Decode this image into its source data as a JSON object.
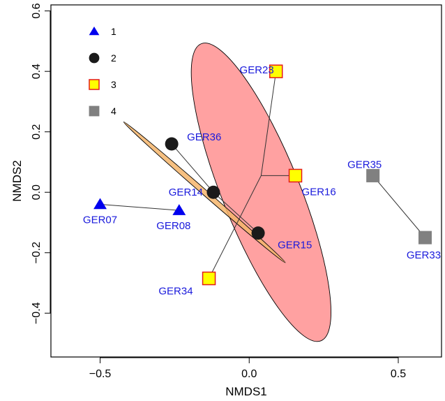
{
  "chart_data": {
    "type": "scatter",
    "xlabel": "NMDS1",
    "ylabel": "NMDS2",
    "xlim": [
      -0.665,
      0.645
    ],
    "ylim": [
      -0.545,
      0.62
    ],
    "x_ticks": [
      -0.5,
      0.0,
      0.5
    ],
    "x_tick_labels": [
      "−0.5",
      "0.0",
      "0.5"
    ],
    "y_ticks": [
      -0.4,
      -0.2,
      0.0,
      0.2,
      0.4,
      0.6
    ],
    "y_tick_labels": [
      "−0.4",
      "−0.2",
      "0.0",
      "0.2",
      "0.4",
      "0.6"
    ],
    "grid": false,
    "legend_position": "top-left",
    "series": [
      {
        "name": "1",
        "marker": "triangle",
        "color": "#0000ee",
        "points": [
          {
            "label": "GER07",
            "x": -0.5,
            "y": -0.04
          },
          {
            "label": "GER08",
            "x": -0.235,
            "y": -0.06
          }
        ]
      },
      {
        "name": "2",
        "marker": "circle",
        "color": "#1a1a1a",
        "points": [
          {
            "label": "GER36",
            "x": -0.26,
            "y": 0.16
          },
          {
            "label": "GER14",
            "x": -0.12,
            "y": 0.0
          },
          {
            "label": "GER15",
            "x": 0.03,
            "y": -0.135
          }
        ]
      },
      {
        "name": "3",
        "marker": "square",
        "color": "#ffff00",
        "edge_color": "#e41a1c",
        "points": [
          {
            "label": "GER23",
            "x": 0.09,
            "y": 0.4
          },
          {
            "label": "GER16",
            "x": 0.155,
            "y": 0.055
          },
          {
            "label": "GER34",
            "x": -0.135,
            "y": -0.285
          }
        ]
      },
      {
        "name": "4",
        "marker": "square",
        "color": "#808080",
        "points": [
          {
            "label": "GER35",
            "x": 0.415,
            "y": 0.055
          },
          {
            "label": "GER33",
            "x": 0.59,
            "y": -0.15
          }
        ]
      }
    ],
    "spiders": [
      {
        "group": "1",
        "center": [
          -0.5,
          -0.04
        ],
        "ends": [
          [
            -0.235,
            -0.06
          ]
        ]
      },
      {
        "group": "2",
        "center": [
          -0.12,
          0.0
        ],
        "ends": [
          [
            -0.26,
            0.16
          ],
          [
            0.03,
            -0.135
          ]
        ]
      },
      {
        "group": "3",
        "center": [
          0.04,
          0.055
        ],
        "ends": [
          [
            0.09,
            0.4
          ],
          [
            0.155,
            0.055
          ],
          [
            -0.135,
            -0.285
          ]
        ]
      },
      {
        "group": "4",
        "center": [
          0.415,
          0.055
        ],
        "ends": [
          [
            0.59,
            -0.15
          ]
        ]
      }
    ],
    "ellipses": [
      {
        "group": "3",
        "center": [
          0.04,
          0.0
        ],
        "rx": 0.13,
        "ry": 0.53,
        "angle_deg": -22,
        "fill": "#ff8a8a",
        "opacity": 0.8
      },
      {
        "group": "2",
        "center": [
          -0.15,
          0.0
        ],
        "rx": 0.009,
        "ry": 0.355,
        "angle_deg": -49,
        "fill": "#f5b56b",
        "opacity": 0.85
      }
    ]
  }
}
